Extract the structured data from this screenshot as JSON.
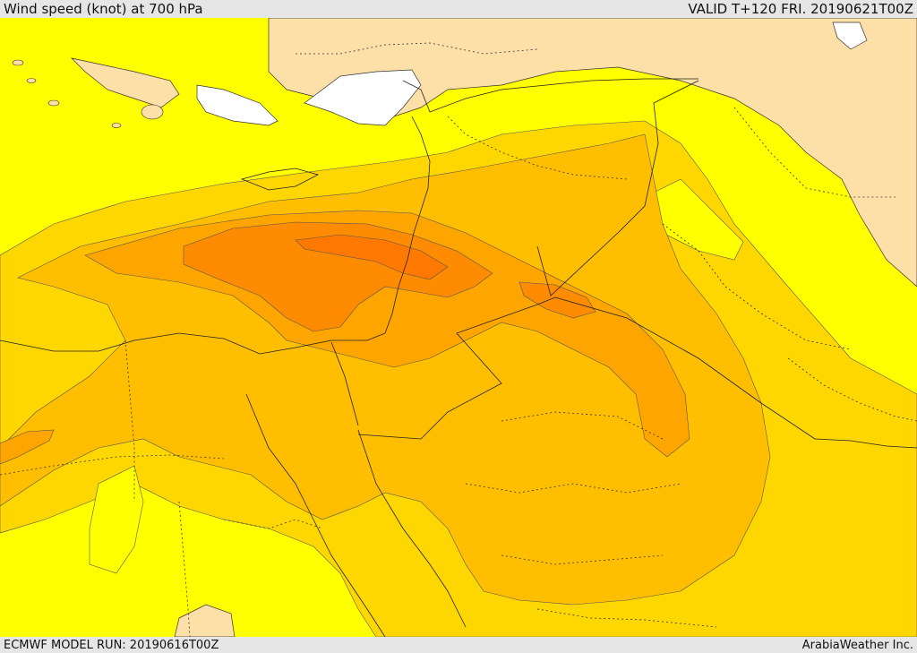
{
  "header": {
    "title": "Wind speed (knot) at 700 hPa",
    "valid": "VALID T+120 FRI. 20190621T00Z"
  },
  "footer": {
    "model_run": "ECMWF MODEL RUN: 20190616T00Z",
    "credit": "ArabiaWeather Inc."
  },
  "colors": {
    "land": "#fde0a8",
    "sea_white": "#ffffff",
    "band_1": "#ffff00",
    "band_2": "#ffd700",
    "band_3": "#ffbf00",
    "band_4": "#ffa500",
    "band_5": "#ff8c00",
    "band_6": "#ff7800"
  }
}
